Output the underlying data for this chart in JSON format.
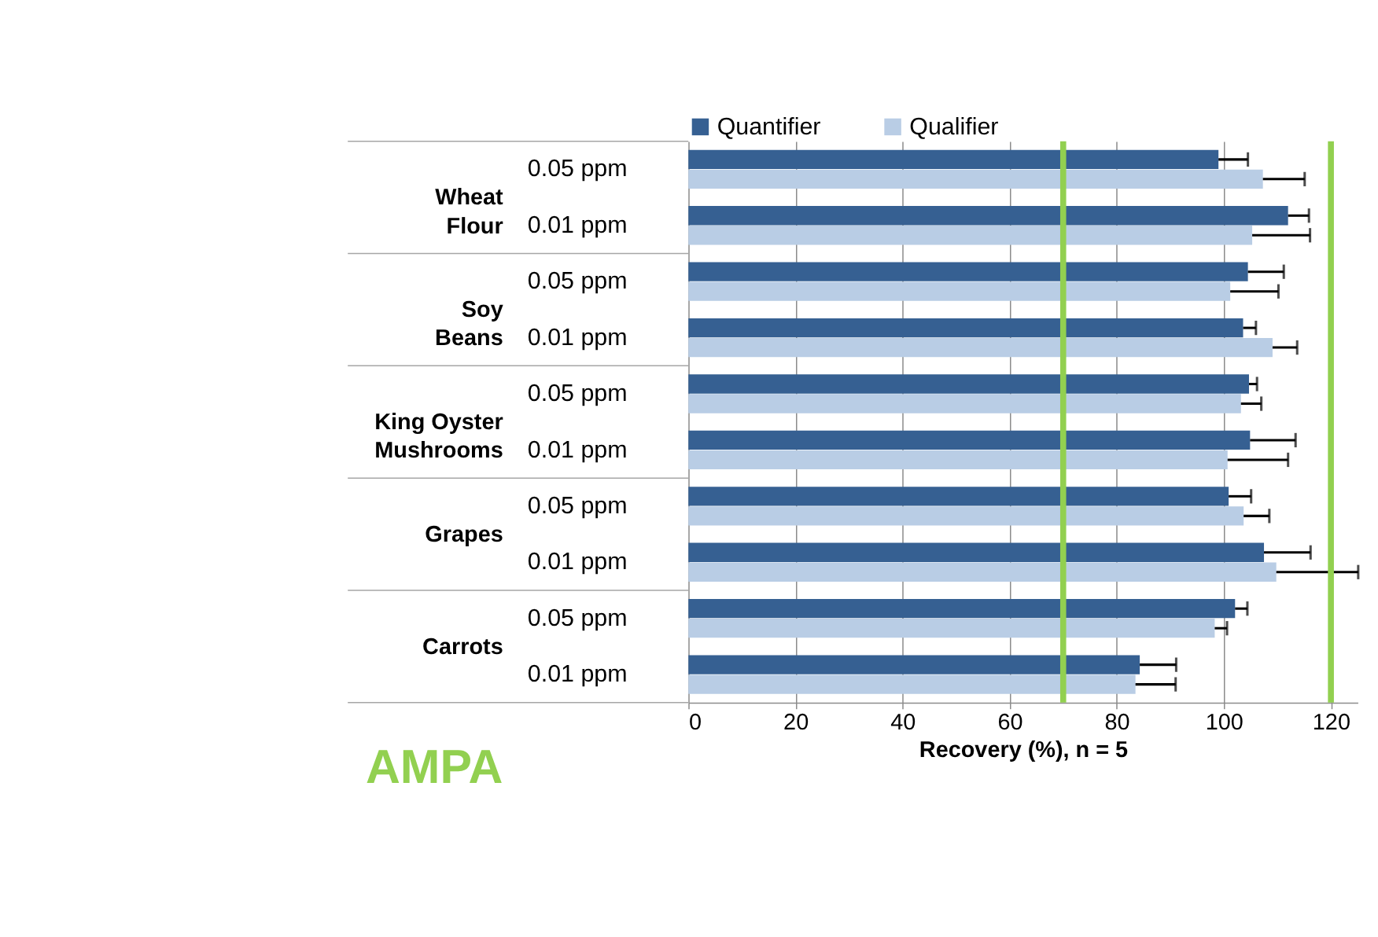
{
  "chart_data": {
    "type": "bar",
    "orientation": "horizontal",
    "title": "AMPA",
    "xlabel": "Recovery (%), n = 5",
    "categories": [
      "0.05 ppm",
      "0.01 ppm",
      "0.05 ppm",
      "0.01 ppm",
      "0.05 ppm",
      "0.01 ppm",
      "0.05 ppm",
      "0.01 ppm",
      "0.05 ppm",
      "0.01 ppm"
    ],
    "series": [
      {
        "name": "Quantifier",
        "color": "#366092",
        "values": [
          99.0,
          112.0,
          104.5,
          103.6,
          104.7,
          104.9,
          100.9,
          107.5,
          102.1,
          84.3
        ],
        "errors": [
          5.5,
          3.9,
          6.7,
          2.4,
          1.5,
          8.5,
          4.2,
          8.7,
          2.3,
          6.8
        ]
      },
      {
        "name": "Qualifier",
        "color": "#b9cde5",
        "values": [
          107.3,
          105.3,
          101.2,
          109.1,
          103.2,
          100.7,
          103.7,
          109.8,
          98.3,
          83.5
        ],
        "errors": [
          7.8,
          10.8,
          9.0,
          4.6,
          3.8,
          11.3,
          4.8,
          15.3,
          2.3,
          7.5
        ]
      }
    ],
    "annotations": [
      "Wheat\nFlour",
      "Soy\nBeans",
      "King Oyster\nMushrooms",
      "Grapes",
      "Carrots"
    ],
    "ref_lines": [
      {
        "axis": "x",
        "value": 70,
        "color": "#92d050"
      },
      {
        "axis": "x",
        "value": 120,
        "color": "#92d050"
      }
    ],
    "xlim": [
      0,
      125
    ],
    "xticks": [
      0,
      20,
      40,
      60,
      80,
      100,
      120
    ],
    "grid": "x",
    "legend": "top"
  }
}
